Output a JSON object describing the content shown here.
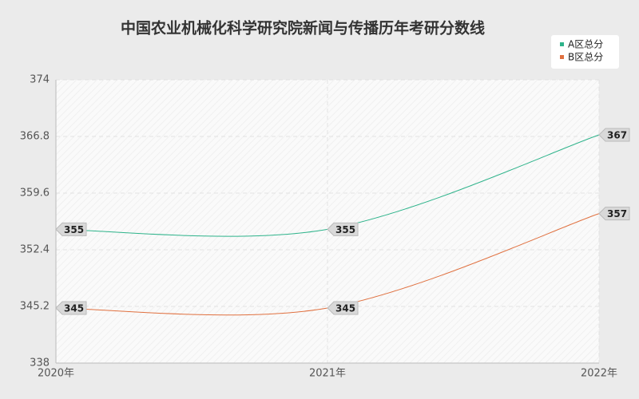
{
  "chart_data": {
    "type": "line",
    "title": "中国农业机械化科学研究院新闻与传播历年考研分数线",
    "categories": [
      "2020年",
      "2021年",
      "2022年"
    ],
    "series": [
      {
        "name": "A区总分",
        "color": "#2db38a",
        "values": [
          355,
          355,
          367
        ]
      },
      {
        "name": "B区总分",
        "color": "#e0703f",
        "values": [
          345,
          345,
          357
        ]
      }
    ],
    "ylim": [
      338,
      374
    ],
    "yticks": [
      338,
      345.2,
      352.4,
      359.6,
      366.8,
      374
    ],
    "grid": true,
    "legend": "top-right"
  }
}
